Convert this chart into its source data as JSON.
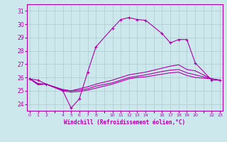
{
  "xlabel": "Windchill (Refroidissement éolien,°C)",
  "bg_color": "#cce8ec",
  "grid_color": "#aacccc",
  "line_color": "#aa00aa",
  "ylim": [
    23.5,
    31.5
  ],
  "yticks": [
    24,
    25,
    26,
    27,
    28,
    29,
    30,
    31
  ],
  "xtick_positions": [
    0,
    1,
    2,
    4,
    5,
    6,
    7,
    8,
    10,
    11,
    12,
    13,
    14,
    16,
    17,
    18,
    19,
    20,
    22,
    23
  ],
  "xlim": [
    -0.3,
    23.3
  ],
  "series": [
    {
      "x": [
        0,
        1,
        2,
        4,
        5,
        6,
        7,
        8,
        10,
        11,
        12,
        13,
        14,
        16,
        17,
        18,
        19,
        20,
        22,
        23
      ],
      "y": [
        25.9,
        25.8,
        25.5,
        25.0,
        23.7,
        24.4,
        26.4,
        28.3,
        29.7,
        30.35,
        30.5,
        30.35,
        30.3,
        29.3,
        28.6,
        28.85,
        28.85,
        27.1,
        25.8,
        25.8
      ],
      "marker": true
    },
    {
      "x": [
        0,
        1,
        2,
        4,
        5,
        6,
        7,
        8,
        10,
        11,
        12,
        13,
        14,
        16,
        17,
        18,
        19,
        20,
        22,
        23
      ],
      "y": [
        25.9,
        25.55,
        25.5,
        25.1,
        25.0,
        25.15,
        25.3,
        25.5,
        25.8,
        26.0,
        26.2,
        26.3,
        26.4,
        26.7,
        26.85,
        26.95,
        26.6,
        26.5,
        25.9,
        25.8
      ],
      "marker": false
    },
    {
      "x": [
        0,
        1,
        2,
        4,
        5,
        6,
        7,
        8,
        10,
        11,
        12,
        13,
        14,
        16,
        17,
        18,
        19,
        20,
        22,
        23
      ],
      "y": [
        25.9,
        25.5,
        25.5,
        25.05,
        25.0,
        25.05,
        25.15,
        25.35,
        25.6,
        25.8,
        26.0,
        26.1,
        26.2,
        26.45,
        26.55,
        26.6,
        26.35,
        26.2,
        25.9,
        25.8
      ],
      "marker": false
    },
    {
      "x": [
        0,
        1,
        2,
        4,
        5,
        6,
        7,
        8,
        10,
        11,
        12,
        13,
        14,
        16,
        17,
        18,
        19,
        20,
        22,
        23
      ],
      "y": [
        25.9,
        25.45,
        25.5,
        25.0,
        24.9,
        24.95,
        25.05,
        25.2,
        25.5,
        25.7,
        25.9,
        26.0,
        26.05,
        26.25,
        26.35,
        26.4,
        26.15,
        26.0,
        25.9,
        25.8
      ],
      "marker": false
    }
  ]
}
